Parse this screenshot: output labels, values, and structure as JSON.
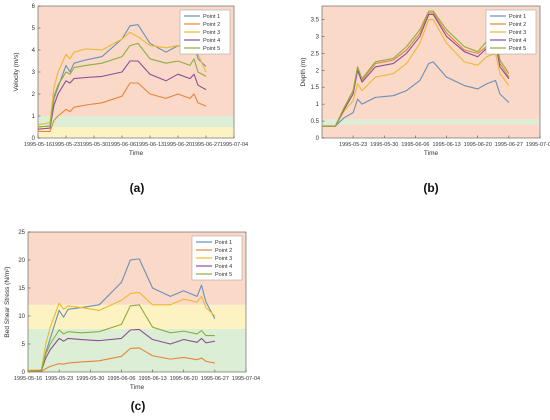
{
  "figure": {
    "panels": [
      "(a)",
      "(b)",
      "(c)"
    ]
  },
  "colors": {
    "point1": "#6b8fb8",
    "point2": "#e8843a",
    "point3": "#eeb830",
    "point4": "#8a4f94",
    "point5": "#8cae3e",
    "band_red": "#fad9c9",
    "band_yellow": "#fdf2c2",
    "band_green": "#dcefd6",
    "axis": "#555555"
  },
  "chart_data": [
    {
      "type": "line",
      "panel_label": "(a)",
      "xlabel": "Time",
      "ylabel": "Velocity (m/s)",
      "xlim": [
        "1995-05-16",
        "1995-07-04"
      ],
      "ylim": [
        0,
        6
      ],
      "xticks": [
        "1995-05-16",
        "1995-05-23",
        "1995-05-30",
        "1995-06-06",
        "1995-06-13",
        "1995-06-20",
        "1995-06-27",
        "1995-07-04"
      ],
      "yticks": [
        0,
        1,
        2,
        3,
        4,
        5,
        6
      ],
      "bands": [
        {
          "from": 0,
          "to": 0.5,
          "color": "band_yellow"
        },
        {
          "from": 0.5,
          "to": 1.0,
          "color": "band_green"
        },
        {
          "from": 1.0,
          "to": 6,
          "color": "band_red"
        }
      ],
      "legend": "top-right",
      "x": [
        "1995-05-16",
        "1995-05-19",
        "1995-05-20",
        "1995-05-21",
        "1995-05-23",
        "1995-05-24",
        "1995-05-25",
        "1995-05-28",
        "1995-06-01",
        "1995-06-06",
        "1995-06-08",
        "1995-06-10",
        "1995-06-13",
        "1995-06-17",
        "1995-06-20",
        "1995-06-23",
        "1995-06-24",
        "1995-06-25",
        "1995-06-27"
      ],
      "series": [
        {
          "name": "Point 1",
          "color": "point1",
          "values": [
            0.5,
            0.55,
            1.8,
            2.3,
            3.3,
            3.0,
            3.4,
            3.55,
            3.7,
            4.5,
            5.1,
            5.15,
            4.3,
            3.9,
            4.2,
            4.0,
            4.3,
            3.6,
            3.25
          ]
        },
        {
          "name": "Point 2",
          "color": "point2",
          "values": [
            0.3,
            0.3,
            0.8,
            1.0,
            1.3,
            1.2,
            1.4,
            1.5,
            1.6,
            1.9,
            2.5,
            2.5,
            2.0,
            1.8,
            2.0,
            1.8,
            2.0,
            1.6,
            1.45
          ]
        },
        {
          "name": "Point 3",
          "color": "point3",
          "values": [
            0.6,
            0.7,
            2.3,
            3.0,
            3.8,
            3.6,
            3.9,
            4.05,
            4.0,
            4.5,
            4.8,
            4.6,
            4.2,
            4.1,
            4.2,
            4.0,
            4.2,
            3.8,
            3.0
          ]
        },
        {
          "name": "Point 4",
          "color": "point4",
          "values": [
            0.4,
            0.45,
            1.5,
            2.0,
            2.6,
            2.5,
            2.7,
            2.75,
            2.8,
            3.0,
            3.5,
            3.5,
            2.9,
            2.6,
            2.9,
            2.7,
            2.9,
            2.4,
            2.2
          ]
        },
        {
          "name": "Point 5",
          "color": "point5",
          "values": [
            0.5,
            0.55,
            1.9,
            2.4,
            3.0,
            2.9,
            3.2,
            3.3,
            3.4,
            3.7,
            4.2,
            4.3,
            3.6,
            3.4,
            3.5,
            3.3,
            3.6,
            3.0,
            2.8
          ]
        }
      ]
    },
    {
      "type": "line",
      "panel_label": "(b)",
      "xlabel": "Time",
      "ylabel": "Depth (m)",
      "xlim": [
        "1995-05-16",
        "1995-07-04"
      ],
      "ylim": [
        0,
        3.9
      ],
      "xticks": [
        "1995-05-23",
        "1995-05-30",
        "1995-06-06",
        "1995-06-13",
        "1995-06-20",
        "1995-06-27",
        "1995-07-04"
      ],
      "yticks": [
        0,
        0.5,
        1,
        1.5,
        2,
        2.5,
        3,
        3.5
      ],
      "bands": [
        {
          "from": 0,
          "to": 0.4,
          "color": "band_red"
        },
        {
          "from": 0.4,
          "to": 0.55,
          "color": "band_green"
        },
        {
          "from": 0.55,
          "to": 3.9,
          "color": "band_red"
        }
      ],
      "legend": "top-right",
      "x": [
        "1995-05-16",
        "1995-05-19",
        "1995-05-21",
        "1995-05-23",
        "1995-05-24",
        "1995-05-25",
        "1995-05-28",
        "1995-06-01",
        "1995-06-04",
        "1995-06-07",
        "1995-06-09",
        "1995-06-10",
        "1995-06-13",
        "1995-06-17",
        "1995-06-20",
        "1995-06-22",
        "1995-06-24",
        "1995-06-25",
        "1995-06-27"
      ],
      "series": [
        {
          "name": "Point 1",
          "color": "point1",
          "values": [
            0.35,
            0.35,
            0.6,
            0.75,
            1.15,
            1.0,
            1.2,
            1.25,
            1.4,
            1.7,
            2.2,
            2.25,
            1.8,
            1.55,
            1.45,
            1.6,
            1.7,
            1.3,
            1.05
          ]
        },
        {
          "name": "Point 2",
          "color": "point2",
          "values": [
            0.35,
            0.35,
            0.9,
            1.4,
            2.1,
            1.7,
            2.2,
            2.3,
            2.6,
            3.1,
            3.7,
            3.7,
            3.1,
            2.6,
            2.5,
            2.7,
            2.9,
            2.2,
            1.8
          ]
        },
        {
          "name": "Point 3",
          "color": "point3",
          "values": [
            0.35,
            0.35,
            0.8,
            1.1,
            1.6,
            1.4,
            1.8,
            1.9,
            2.2,
            2.8,
            3.5,
            3.5,
            2.8,
            2.25,
            2.15,
            2.4,
            2.5,
            1.9,
            1.55
          ]
        },
        {
          "name": "Point 4",
          "color": "point4",
          "values": [
            0.35,
            0.35,
            0.85,
            1.3,
            2.0,
            1.65,
            2.1,
            2.2,
            2.5,
            3.0,
            3.65,
            3.65,
            3.0,
            2.55,
            2.4,
            2.65,
            2.8,
            2.1,
            1.75
          ]
        },
        {
          "name": "Point 5",
          "color": "point5",
          "values": [
            0.35,
            0.35,
            0.9,
            1.4,
            2.1,
            1.75,
            2.25,
            2.35,
            2.7,
            3.2,
            3.75,
            3.75,
            3.2,
            2.7,
            2.55,
            2.85,
            3.0,
            2.3,
            1.9
          ]
        }
      ]
    },
    {
      "type": "line",
      "panel_label": "(c)",
      "xlabel": "Time",
      "ylabel": "Bed Shear Stress (N/m²)",
      "xlim": [
        "1995-05-16",
        "1995-07-04"
      ],
      "ylim": [
        0,
        25
      ],
      "xticks": [
        "1995-05-16",
        "1995-05-23",
        "1995-05-30",
        "1995-06-06",
        "1995-06-13",
        "1995-06-20",
        "1995-06-27",
        "1995-07-04"
      ],
      "yticks": [
        0,
        5,
        10,
        15,
        20,
        25
      ],
      "bands": [
        {
          "from": 0,
          "to": 7.7,
          "color": "band_green"
        },
        {
          "from": 7.7,
          "to": 12,
          "color": "band_yellow"
        },
        {
          "from": 12,
          "to": 25,
          "color": "band_red"
        }
      ],
      "legend": "top-right",
      "x": [
        "1995-05-16",
        "1995-05-19",
        "1995-05-20",
        "1995-05-21",
        "1995-05-23",
        "1995-05-24",
        "1995-05-25",
        "1995-05-28",
        "1995-06-01",
        "1995-06-06",
        "1995-06-08",
        "1995-06-10",
        "1995-06-13",
        "1995-06-17",
        "1995-06-20",
        "1995-06-23",
        "1995-06-24",
        "1995-06-25",
        "1995-06-27"
      ],
      "series": [
        {
          "name": "Point 1",
          "color": "point1",
          "values": [
            0.2,
            0.3,
            3.5,
            6.0,
            11.0,
            9.8,
            11.2,
            11.5,
            12.0,
            16.0,
            20.0,
            20.2,
            15.0,
            13.5,
            14.5,
            13.5,
            15.5,
            12.5,
            9.5
          ]
        },
        {
          "name": "Point 2",
          "color": "point2",
          "values": [
            0.1,
            0.1,
            0.6,
            1.0,
            1.5,
            1.4,
            1.6,
            1.8,
            2.0,
            2.8,
            4.2,
            4.3,
            2.9,
            2.3,
            2.6,
            2.2,
            2.5,
            1.9,
            1.6
          ]
        },
        {
          "name": "Point 3",
          "color": "point3",
          "values": [
            0.3,
            0.4,
            5.0,
            8.0,
            12.3,
            11.2,
            11.8,
            11.5,
            11.0,
            12.8,
            14.0,
            14.2,
            12.0,
            12.0,
            13.0,
            12.5,
            13.5,
            11.5,
            10.0
          ]
        },
        {
          "name": "Point 4",
          "color": "point4",
          "values": [
            0.2,
            0.2,
            2.5,
            4.0,
            6.0,
            5.5,
            6.0,
            5.8,
            5.6,
            6.0,
            7.5,
            7.6,
            5.8,
            5.0,
            5.8,
            5.3,
            6.0,
            5.2,
            5.5
          ]
        },
        {
          "name": "Point 5",
          "color": "point5",
          "values": [
            0.2,
            0.3,
            3.2,
            5.0,
            7.5,
            6.8,
            7.2,
            7.0,
            7.2,
            8.5,
            11.8,
            12.0,
            8.0,
            7.0,
            7.3,
            6.8,
            7.4,
            6.5,
            6.5
          ]
        }
      ]
    }
  ]
}
